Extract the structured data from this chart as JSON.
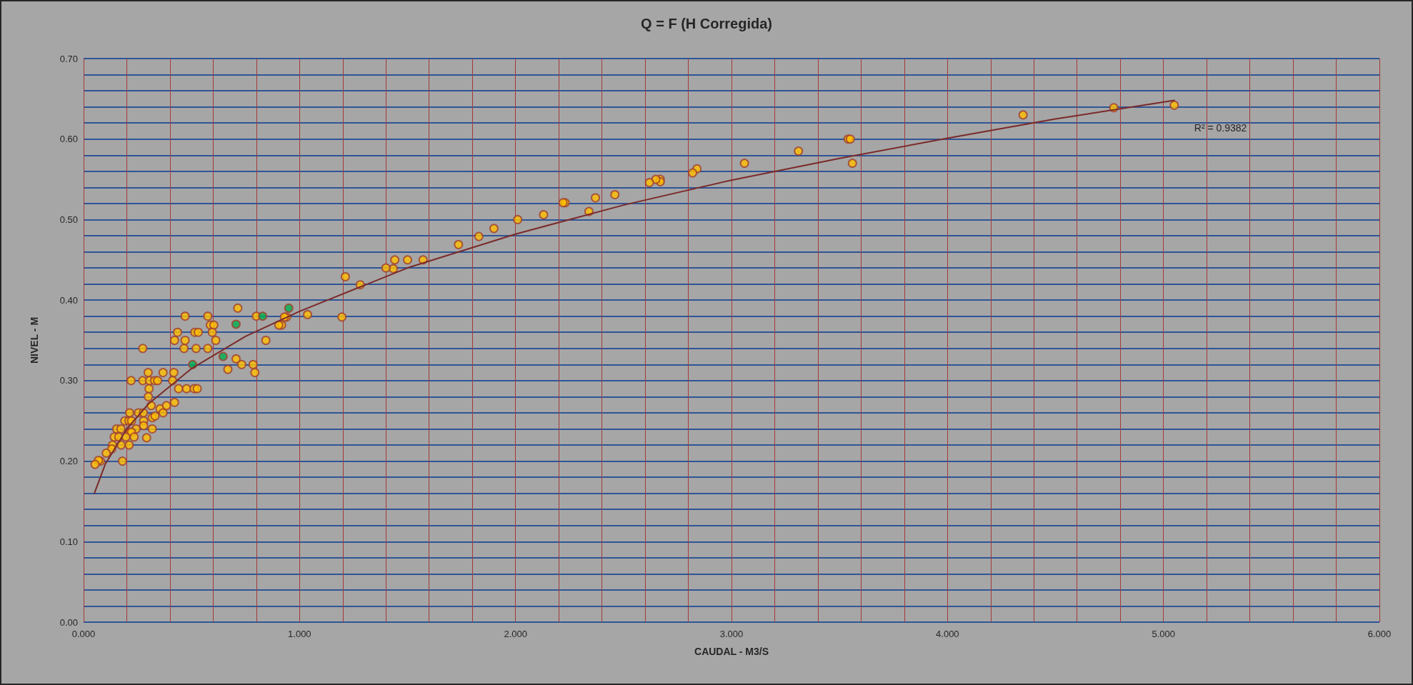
{
  "chart_data": {
    "type": "scatter",
    "title": "Q = F (H Corregida)",
    "xlabel": "CAUDAL - M3/S",
    "ylabel": "NIVEL - M",
    "xlim": [
      0,
      6
    ],
    "ylim": [
      0,
      0.7
    ],
    "xticks": [
      {
        "value": 0,
        "label": "0.000"
      },
      {
        "value": 0.2,
        "label": null
      },
      {
        "value": 0.4,
        "label": null
      },
      {
        "value": 0.6,
        "label": null
      },
      {
        "value": 0.8,
        "label": null
      },
      {
        "value": 1,
        "label": "1.000"
      },
      {
        "value": 1.2,
        "label": null
      },
      {
        "value": 1.4,
        "label": null
      },
      {
        "value": 1.6,
        "label": null
      },
      {
        "value": 1.8,
        "label": null
      },
      {
        "value": 2,
        "label": "2.000"
      },
      {
        "value": 2.2,
        "label": null
      },
      {
        "value": 2.4,
        "label": null
      },
      {
        "value": 2.6,
        "label": null
      },
      {
        "value": 2.8,
        "label": null
      },
      {
        "value": 3,
        "label": "3.000"
      },
      {
        "value": 3.2,
        "label": null
      },
      {
        "value": 3.4,
        "label": null
      },
      {
        "value": 3.6,
        "label": null
      },
      {
        "value": 3.8,
        "label": null
      },
      {
        "value": 4,
        "label": "4.000"
      },
      {
        "value": 4.2,
        "label": null
      },
      {
        "value": 4.4,
        "label": null
      },
      {
        "value": 4.6,
        "label": null
      },
      {
        "value": 4.8,
        "label": null
      },
      {
        "value": 5,
        "label": "5.000"
      },
      {
        "value": 5.2,
        "label": null
      },
      {
        "value": 5.4,
        "label": null
      },
      {
        "value": 5.6,
        "label": null
      },
      {
        "value": 5.8,
        "label": null
      },
      {
        "value": 6,
        "label": "6.000"
      }
    ],
    "yticks": [
      {
        "value": 0,
        "label": "0.00"
      },
      {
        "value": 0.02,
        "label": null
      },
      {
        "value": 0.04,
        "label": null
      },
      {
        "value": 0.06,
        "label": null
      },
      {
        "value": 0.08,
        "label": null
      },
      {
        "value": 0.1,
        "label": "0.10"
      },
      {
        "value": 0.12,
        "label": null
      },
      {
        "value": 0.14,
        "label": null
      },
      {
        "value": 0.16,
        "label": null
      },
      {
        "value": 0.18,
        "label": null
      },
      {
        "value": 0.2,
        "label": "0.20"
      },
      {
        "value": 0.22,
        "label": null
      },
      {
        "value": 0.24,
        "label": null
      },
      {
        "value": 0.26,
        "label": null
      },
      {
        "value": 0.28,
        "label": null
      },
      {
        "value": 0.3,
        "label": "0.30"
      },
      {
        "value": 0.32,
        "label": null
      },
      {
        "value": 0.34,
        "label": null
      },
      {
        "value": 0.36,
        "label": null
      },
      {
        "value": 0.38,
        "label": null
      },
      {
        "value": 0.4,
        "label": "0.40"
      },
      {
        "value": 0.42,
        "label": null
      },
      {
        "value": 0.44,
        "label": null
      },
      {
        "value": 0.46,
        "label": null
      },
      {
        "value": 0.48,
        "label": null
      },
      {
        "value": 0.5,
        "label": "0.50"
      },
      {
        "value": 0.52,
        "label": null
      },
      {
        "value": 0.54,
        "label": null
      },
      {
        "value": 0.56,
        "label": null
      },
      {
        "value": 0.58,
        "label": null
      },
      {
        "value": 0.6,
        "label": "0.60"
      },
      {
        "value": 0.62,
        "label": null
      },
      {
        "value": 0.64,
        "label": null
      },
      {
        "value": 0.66,
        "label": null
      },
      {
        "value": 0.68,
        "label": null
      },
      {
        "value": 0.7,
        "label": "0.70"
      }
    ],
    "grid": true,
    "marker": "circle",
    "series": [
      {
        "color": "#ffc000",
        "x": [
          5.05,
          4.77,
          4.35,
          3.56,
          3.54,
          3.55,
          3.31,
          3.06,
          2.84,
          2.82,
          2.67,
          2.67,
          2.65,
          2.62,
          2.46,
          2.37,
          2.34,
          2.23,
          2.22,
          2.13,
          2.01,
          1.9,
          1.83,
          1.736,
          1.572,
          1.5,
          1.441,
          1.434,
          1.4,
          1.281,
          1.212,
          1.196,
          1.037,
          0.94,
          0.93,
          0.917,
          0.714,
          0.47,
          0.575,
          0.8,
          0.587,
          0.603,
          0.904,
          0.435,
          0.515,
          0.531,
          0.596,
          0.421,
          0.47,
          0.612,
          0.844,
          0.274,
          0.465,
          0.521,
          0.575,
          0.706,
          0.732,
          0.785,
          0.668,
          0.793,
          0.299,
          0.368,
          0.418,
          0.22,
          0.274,
          0.305,
          0.329,
          0.343,
          0.412,
          0.303,
          0.44,
          0.477,
          0.512,
          0.526,
          0.3,
          0.421,
          0.313,
          0.354,
          0.384,
          0.368,
          0.213,
          0.254,
          0.277,
          0.318,
          0.331,
          0.191,
          0.21,
          0.222,
          0.278,
          0.278,
          0.153,
          0.173,
          0.243,
          0.318,
          0.215,
          0.222,
          0.142,
          0.163,
          0.196,
          0.234,
          0.292,
          0.134,
          0.174,
          0.211,
          0.13,
          0.105,
          0.078,
          0.069,
          0.18,
          0.053
        ],
        "values": [
          0.642,
          0.639,
          0.63,
          0.57,
          0.6,
          0.6,
          0.585,
          0.57,
          0.563,
          0.558,
          0.55,
          0.547,
          0.55,
          0.546,
          0.531,
          0.527,
          0.51,
          0.521,
          0.521,
          0.506,
          0.5,
          0.489,
          0.479,
          0.469,
          0.45,
          0.45,
          0.45,
          0.439,
          0.44,
          0.419,
          0.429,
          0.379,
          0.382,
          0.379,
          0.379,
          0.369,
          0.39,
          0.38,
          0.38,
          0.38,
          0.369,
          0.369,
          0.369,
          0.36,
          0.36,
          0.36,
          0.36,
          0.35,
          0.35,
          0.35,
          0.35,
          0.34,
          0.34,
          0.34,
          0.34,
          0.327,
          0.32,
          0.32,
          0.314,
          0.31,
          0.31,
          0.31,
          0.31,
          0.3,
          0.3,
          0.3,
          0.3,
          0.3,
          0.3,
          0.29,
          0.29,
          0.29,
          0.29,
          0.29,
          0.28,
          0.273,
          0.269,
          0.265,
          0.269,
          0.26,
          0.26,
          0.26,
          0.26,
          0.254,
          0.256,
          0.25,
          0.25,
          0.25,
          0.25,
          0.244,
          0.24,
          0.24,
          0.24,
          0.24,
          0.236,
          0.236,
          0.23,
          0.23,
          0.23,
          0.23,
          0.229,
          0.22,
          0.22,
          0.22,
          0.215,
          0.21,
          0.2,
          0.201,
          0.2,
          0.196
        ]
      },
      {
        "color": "#00b050",
        "x": [
          0.95,
          0.829,
          0.706,
          0.646,
          0.505
        ],
        "values": [
          0.39,
          0.38,
          0.37,
          0.33,
          0.32
        ]
      },
      {
        "type": "line",
        "color": "#7b2a2a",
        "line_style": "solid",
        "marker": "none",
        "x": [
          0.05,
          0.1,
          0.2,
          0.3,
          0.5,
          0.75,
          1,
          1.5,
          2,
          2.5,
          3,
          3.5,
          4,
          4.5,
          5.05
        ],
        "values": [
          0.16,
          0.196,
          0.24,
          0.271,
          0.315,
          0.355,
          0.386,
          0.44,
          0.482,
          0.518,
          0.549,
          0.576,
          0.601,
          0.625,
          0.648
        ]
      }
    ],
    "annotations": [
      "R² = 0.9382"
    ]
  }
}
